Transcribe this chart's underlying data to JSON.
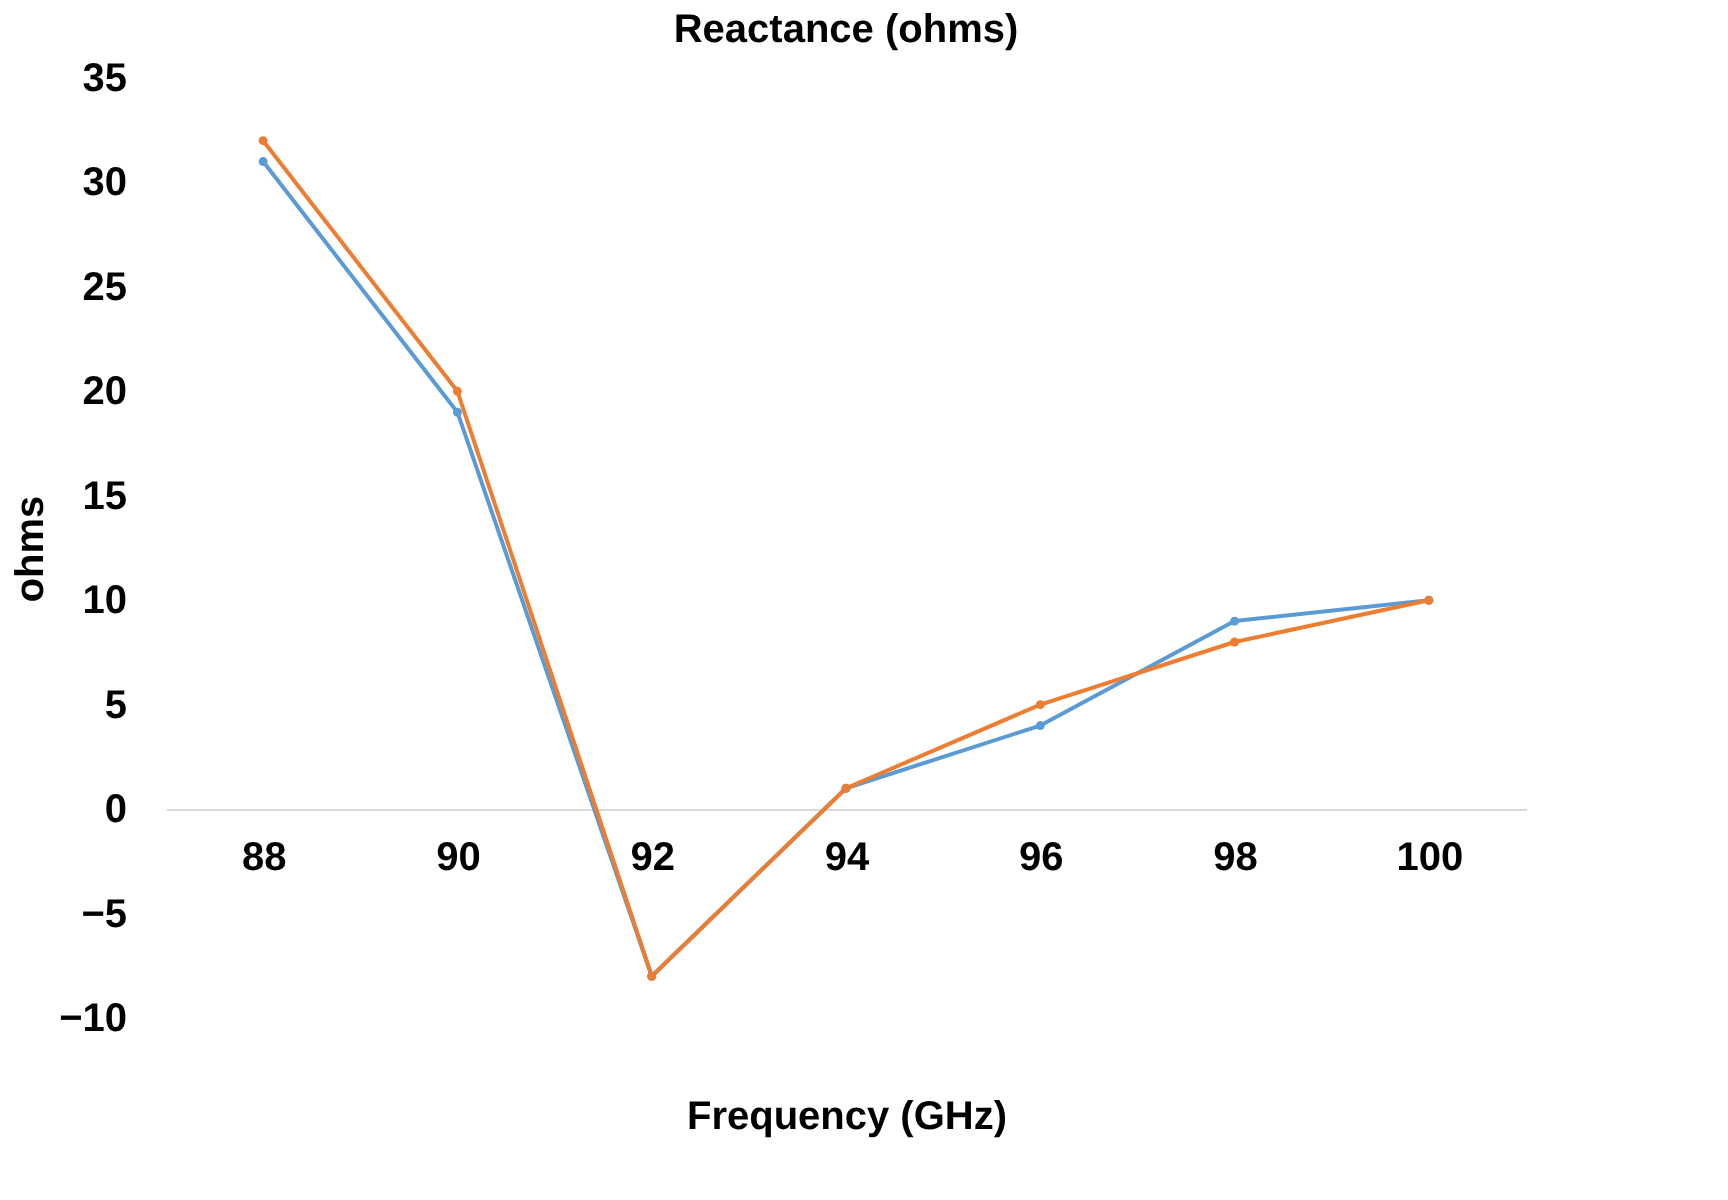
{
  "chart_data": {
    "type": "line",
    "title": "Reactance (ohms)",
    "xlabel": "Frequency (GHz)",
    "ylabel": "ohms",
    "categories": [
      "88",
      "90",
      "92",
      "94",
      "96",
      "98",
      "100"
    ],
    "series": [
      {
        "color": "#5b9bd5",
        "values": [
          31,
          19,
          -8,
          1,
          4,
          9,
          10
        ]
      },
      {
        "color": "#ed7d31",
        "values": [
          32,
          20,
          -8,
          1,
          5,
          8,
          10
        ]
      }
    ],
    "ylim": [
      -10,
      35
    ],
    "yticks": [
      -10,
      -5,
      0,
      5,
      10,
      15,
      20,
      25,
      30,
      35
    ],
    "grid": false,
    "legend": false,
    "marker": "circle",
    "line_style": "solid"
  }
}
